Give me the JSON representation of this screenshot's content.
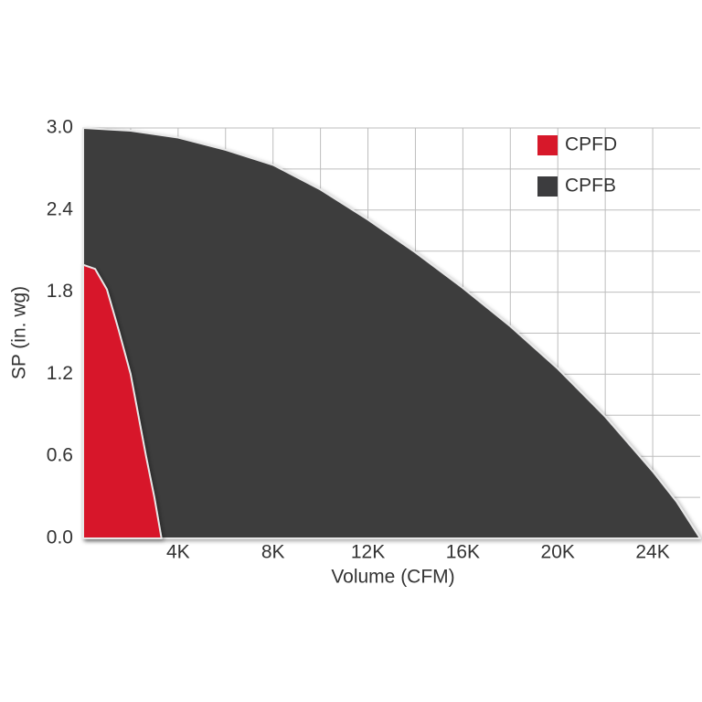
{
  "chart_data": {
    "type": "area",
    "xlabel": "Volume (CFM)",
    "ylabel": "SP (in. wg)",
    "xlim": [
      0,
      26000
    ],
    "ylim": [
      0,
      3.0
    ],
    "xticks": [
      {
        "value": 4000,
        "label": "4K"
      },
      {
        "value": 8000,
        "label": "8K"
      },
      {
        "value": 12000,
        "label": "12K"
      },
      {
        "value": 16000,
        "label": "16K"
      },
      {
        "value": 20000,
        "label": "20K"
      },
      {
        "value": 24000,
        "label": "24K"
      }
    ],
    "yticks": [
      {
        "value": 0,
        "label": "0.0"
      },
      0.6,
      1.2,
      1.8,
      2.4,
      {
        "value": 3,
        "label": "3.0"
      }
    ],
    "x_gridlines": [
      2000,
      4000,
      6000,
      8000,
      10000,
      12000,
      14000,
      16000,
      18000,
      20000,
      22000,
      24000
    ],
    "y_gridlines": [
      0.3,
      0.6,
      0.9,
      1.2,
      1.5,
      1.8,
      2.1,
      2.4,
      2.7,
      3.0
    ],
    "grid": true,
    "legend": "upper right",
    "series": [
      {
        "name": "CPFD",
        "color": "#d7182a",
        "x": [
          0,
          500,
          1000,
          1500,
          2000,
          2650,
          3000,
          3300
        ],
        "values": [
          2.0,
          1.97,
          1.82,
          1.52,
          1.2,
          0.6,
          0.3,
          0
        ]
      },
      {
        "name": "CPFB",
        "color": "#3c3c3e",
        "x": [
          0,
          2000,
          4000,
          6000,
          8000,
          10000,
          12000,
          14000,
          16000,
          18000,
          20000,
          22000,
          24000,
          25000,
          26000
        ],
        "values": [
          3.0,
          2.98,
          2.93,
          2.84,
          2.73,
          2.55,
          2.33,
          2.09,
          1.83,
          1.55,
          1.24,
          0.89,
          0.49,
          0.27,
          0
        ]
      }
    ]
  }
}
